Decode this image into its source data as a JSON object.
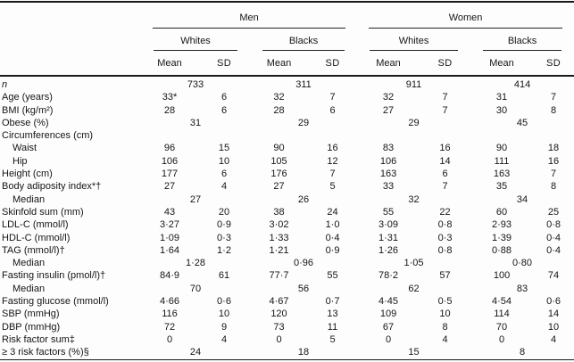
{
  "colors": {
    "background": "#fdfdfd",
    "text": "#151515",
    "rule": "#1a1a1a"
  },
  "table": {
    "groups": [
      {
        "label": "Men"
      },
      {
        "label": "Women"
      }
    ],
    "subgroups": [
      {
        "label": "Whites"
      },
      {
        "label": "Blacks"
      },
      {
        "label": "Whites"
      },
      {
        "label": "Blacks"
      }
    ],
    "col_headers": {
      "mean": "Mean",
      "sd": "SD"
    },
    "rows": [
      {
        "label": "n",
        "italic": true,
        "type": "span",
        "cells": [
          "733",
          "311",
          "911",
          "414"
        ]
      },
      {
        "label": "Age (years)",
        "type": "data",
        "cells": [
          "33*",
          "6",
          "32",
          "7",
          "32",
          "7",
          "31",
          "7"
        ]
      },
      {
        "label": "BMI (kg/m²)",
        "type": "data",
        "cells": [
          "28",
          "6",
          "28",
          "6",
          "27",
          "7",
          "30",
          "8"
        ]
      },
      {
        "label": "Obese (%)",
        "type": "span",
        "cells": [
          "31",
          "29",
          "29",
          "45"
        ]
      },
      {
        "label": "Circumferences (cm)",
        "type": "section",
        "cells": []
      },
      {
        "label": "Waist",
        "indent": 1,
        "type": "data",
        "cells": [
          "96",
          "15",
          "90",
          "16",
          "83",
          "16",
          "90",
          "18"
        ]
      },
      {
        "label": "Hip",
        "indent": 1,
        "type": "data",
        "cells": [
          "106",
          "10",
          "105",
          "12",
          "106",
          "14",
          "111",
          "16"
        ]
      },
      {
        "label": "Height (cm)",
        "type": "data",
        "cells": [
          "177",
          "6",
          "176",
          "7",
          "163",
          "6",
          "163",
          "7"
        ]
      },
      {
        "label": "Body adiposity index*†",
        "type": "data",
        "cells": [
          "27",
          "4",
          "27",
          "5",
          "33",
          "7",
          "35",
          "8"
        ]
      },
      {
        "label": "Median",
        "indent": 1,
        "type": "span",
        "cells": [
          "27",
          "26",
          "32",
          "34"
        ]
      },
      {
        "label": "Skinfold sum (mm)",
        "type": "data",
        "cells": [
          "43",
          "20",
          "38",
          "24",
          "55",
          "22",
          "60",
          "25"
        ]
      },
      {
        "label": "LDL-C (mmol/l)",
        "type": "data",
        "cells": [
          "3·27",
          "0·9",
          "3·02",
          "1·0",
          "3·09",
          "0·8",
          "2·93",
          "0·8"
        ]
      },
      {
        "label": "HDL-C (mmol/l)",
        "type": "data",
        "cells": [
          "1·09",
          "0·3",
          "1·33",
          "0·4",
          "1·31",
          "0·3",
          "1·39",
          "0·4"
        ]
      },
      {
        "label": "TAG (mmol/l)†",
        "type": "data",
        "cells": [
          "1·64",
          "1·2",
          "1·21",
          "0·9",
          "1·26",
          "0·8",
          "0·88",
          "0·4"
        ]
      },
      {
        "label": "Median",
        "indent": 1,
        "type": "span",
        "cells": [
          "1·28",
          "0·96",
          "1·05",
          "0·80"
        ]
      },
      {
        "label": "Fasting insulin (pmol/l)†",
        "type": "data",
        "cells": [
          "84·9",
          "61",
          "77·7",
          "55",
          "78·2",
          "57",
          "100",
          "74"
        ]
      },
      {
        "label": "Median",
        "indent": 1,
        "type": "span",
        "cells": [
          "70",
          "56",
          "62",
          "83"
        ]
      },
      {
        "label": "Fasting glucose (mmol/l)",
        "type": "data",
        "cells": [
          "4·66",
          "0·6",
          "4·67",
          "0·7",
          "4·45",
          "0·5",
          "4·54",
          "0·6"
        ]
      },
      {
        "label": "SBP (mmHg)",
        "type": "data",
        "cells": [
          "116",
          "10",
          "120",
          "13",
          "109",
          "10",
          "114",
          "14"
        ]
      },
      {
        "label": "DBP (mmHg)",
        "type": "data",
        "cells": [
          "72",
          "9",
          "73",
          "11",
          "67",
          "8",
          "70",
          "10"
        ]
      },
      {
        "label": "Risk factor sum‡",
        "type": "data",
        "cells": [
          "0",
          "4",
          "0",
          "5",
          "0",
          "4",
          "0",
          "4"
        ]
      },
      {
        "label": "≥ 3 risk factors (%)§",
        "type": "span",
        "cells": [
          "24",
          "18",
          "15",
          "8"
        ]
      }
    ]
  }
}
